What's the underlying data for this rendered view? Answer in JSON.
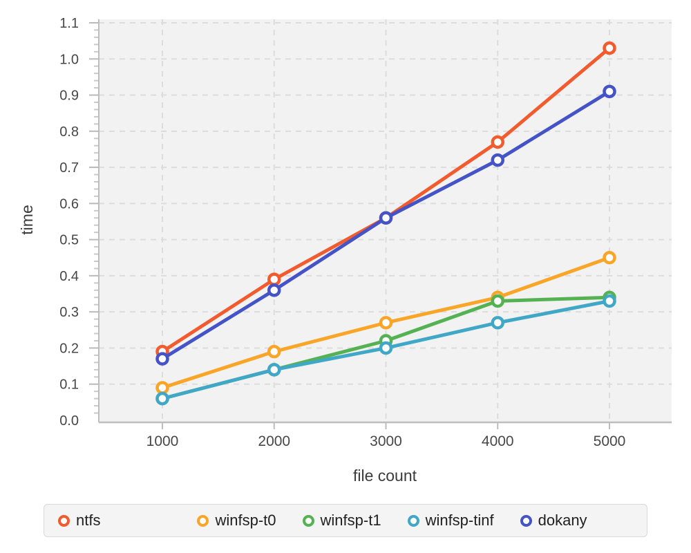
{
  "chart_data": {
    "type": "line",
    "title": "",
    "xlabel": "file count",
    "ylabel": "time",
    "x": [
      1000,
      2000,
      3000,
      4000,
      5000
    ],
    "xticklabels": [
      "1000",
      "2000",
      "3000",
      "4000",
      "5000"
    ],
    "yticklabels": [
      "0.0",
      "0.1",
      "0.2",
      "0.3",
      "0.4",
      "0.5",
      "0.6",
      "0.7",
      "0.8",
      "0.9",
      "1.0",
      "1.1"
    ],
    "ylim": [
      0,
      1.1
    ],
    "grid": true,
    "legend_position": "bottom",
    "marker": "open-circle",
    "series": [
      {
        "name": "ntfs",
        "color": "#F15B2E",
        "values": [
          0.19,
          0.39,
          0.56,
          0.77,
          1.03
        ]
      },
      {
        "name": "winfsp-t0",
        "color": "#F9A628",
        "values": [
          0.09,
          0.19,
          0.27,
          0.34,
          0.45
        ]
      },
      {
        "name": "winfsp-t1",
        "color": "#55B253",
        "values": [
          0.06,
          0.14,
          0.22,
          0.33,
          0.34
        ]
      },
      {
        "name": "winfsp-tinf",
        "color": "#40A8C6",
        "values": [
          0.06,
          0.14,
          0.2,
          0.27,
          0.33
        ]
      },
      {
        "name": "dokany",
        "color": "#4453C6",
        "values": [
          0.17,
          0.36,
          0.56,
          0.72,
          0.91
        ]
      }
    ]
  },
  "styles": {
    "plot_bg": "#f2f2f2",
    "grid_color": "#dcdcdc",
    "axis_color": "#bdbdbd",
    "tick_color": "#c9c9c9",
    "major_tick_color": "#b9b9b9",
    "tick_label_color": "#474747",
    "axis_title_color": "#3b3b3b",
    "legend_bg": "#f4f4f4",
    "legend_border": "#d9d9d9",
    "legend_text": "#1f1f1f",
    "marker_fill": "#ffffff"
  }
}
